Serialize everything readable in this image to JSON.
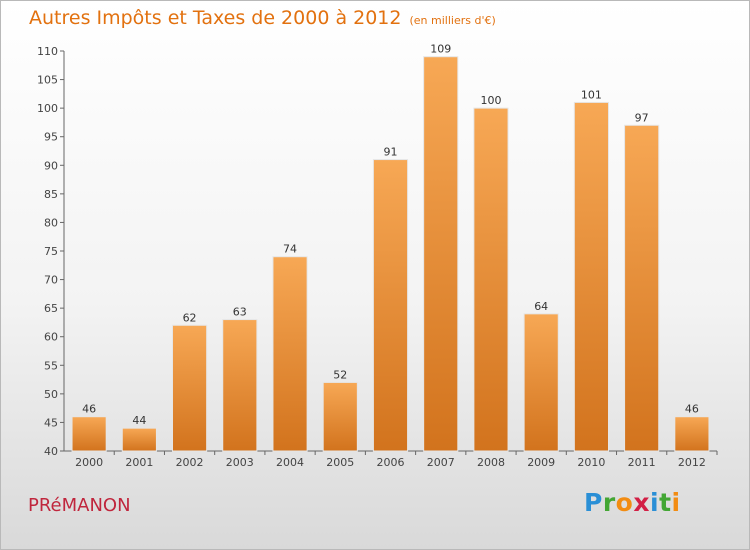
{
  "header": {
    "title": "Autres Impôts et Taxes de 2000 à 2012",
    "unit": "(en milliers d'€)"
  },
  "footer": {
    "commune": "PRéMANON",
    "brand_letters": [
      "P",
      "r",
      "o",
      "x",
      "i",
      "t",
      "i"
    ],
    "brand_colors": [
      "#2a8fd6",
      "#43a634",
      "#f28c12",
      "#d21f45",
      "#2a8fd6",
      "#43a634",
      "#f28c12"
    ]
  },
  "colors": {
    "bar_top": "#f7a855",
    "bar_bottom": "#d2731d",
    "accent": "#e2710f"
  },
  "chart_data": {
    "type": "bar",
    "title": "Autres Impôts et Taxes de 2000 à 2012",
    "subtitle": "(en milliers d'€)",
    "xlabel": "",
    "ylabel": "",
    "categories": [
      "2000",
      "2001",
      "2002",
      "2003",
      "2004",
      "2005",
      "2006",
      "2007",
      "2008",
      "2009",
      "2010",
      "2011",
      "2012"
    ],
    "values": [
      46,
      44,
      62,
      63,
      74,
      52,
      91,
      109,
      100,
      64,
      101,
      97,
      46
    ],
    "ylim": [
      40,
      110
    ],
    "yticks": [
      40,
      45,
      50,
      55,
      60,
      65,
      70,
      75,
      80,
      85,
      90,
      95,
      100,
      105,
      110
    ],
    "grid": false,
    "legend": "none"
  }
}
